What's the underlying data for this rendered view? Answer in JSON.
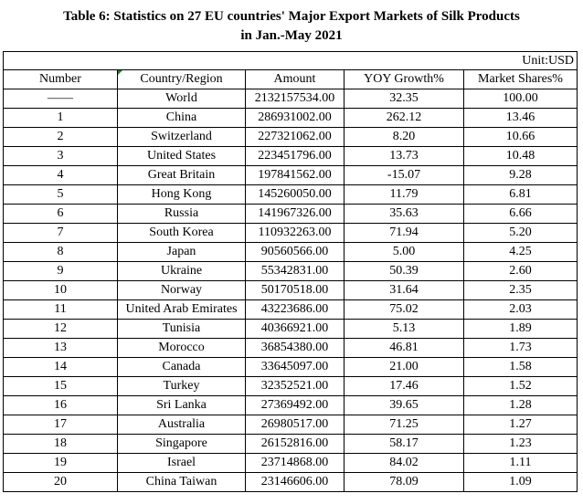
{
  "title": {
    "line1": "Table 6: Statistics on 27 EU countries' Major Export Markets of Silk Products",
    "line2": "in Jan.-May 2021"
  },
  "unit": "Unit:USD",
  "headers": {
    "number": "Number",
    "country": "Country/Region",
    "amount": "Amount",
    "yoy": "YOY Growth%",
    "share": "Market Shares%"
  },
  "rows": [
    {
      "number": "——",
      "country": "World",
      "amount": "2132157534.00",
      "yoy": "32.35",
      "share": "100.00"
    },
    {
      "number": "1",
      "country": "China",
      "amount": "286931002.00",
      "yoy": "262.12",
      "share": "13.46"
    },
    {
      "number": "2",
      "country": "Switzerland",
      "amount": "227321062.00",
      "yoy": "8.20",
      "share": "10.66"
    },
    {
      "number": "3",
      "country": "United States",
      "amount": "223451796.00",
      "yoy": "13.73",
      "share": "10.48"
    },
    {
      "number": "4",
      "country": "Great Britain",
      "amount": "197841562.00",
      "yoy": "-15.07",
      "share": "9.28"
    },
    {
      "number": "5",
      "country": "Hong Kong",
      "amount": "145260050.00",
      "yoy": "11.79",
      "share": "6.81"
    },
    {
      "number": "6",
      "country": "Russia",
      "amount": "141967326.00",
      "yoy": "35.63",
      "share": "6.66"
    },
    {
      "number": "7",
      "country": "South Korea",
      "amount": "110932263.00",
      "yoy": "71.94",
      "share": "5.20"
    },
    {
      "number": "8",
      "country": "Japan",
      "amount": "90560566.00",
      "yoy": "5.00",
      "share": "4.25"
    },
    {
      "number": "9",
      "country": "Ukraine",
      "amount": "55342831.00",
      "yoy": "50.39",
      "share": "2.60"
    },
    {
      "number": "10",
      "country": "Norway",
      "amount": "50170518.00",
      "yoy": "31.64",
      "share": "2.35"
    },
    {
      "number": "11",
      "country": "United Arab Emirates",
      "amount": "43223686.00",
      "yoy": "75.02",
      "share": "2.03"
    },
    {
      "number": "12",
      "country": "Tunisia",
      "amount": "40366921.00",
      "yoy": "5.13",
      "share": "1.89"
    },
    {
      "number": "13",
      "country": "Morocco",
      "amount": "36854380.00",
      "yoy": "46.81",
      "share": "1.73"
    },
    {
      "number": "14",
      "country": "Canada",
      "amount": "33645097.00",
      "yoy": "21.00",
      "share": "1.58"
    },
    {
      "number": "15",
      "country": "Turkey",
      "amount": "32352521.00",
      "yoy": "17.46",
      "share": "1.52"
    },
    {
      "number": "16",
      "country": "Sri Lanka",
      "amount": "27369492.00",
      "yoy": "39.65",
      "share": "1.28"
    },
    {
      "number": "17",
      "country": "Australia",
      "amount": "26980517.00",
      "yoy": "71.25",
      "share": "1.27"
    },
    {
      "number": "18",
      "country": "Singapore",
      "amount": "26152816.00",
      "yoy": "58.17",
      "share": "1.23"
    },
    {
      "number": "19",
      "country": "Israel",
      "amount": "23714868.00",
      "yoy": "84.02",
      "share": "1.11"
    },
    {
      "number": "20",
      "country": "China Taiwan",
      "amount": "23146606.00",
      "yoy": "78.09",
      "share": "1.09"
    }
  ]
}
